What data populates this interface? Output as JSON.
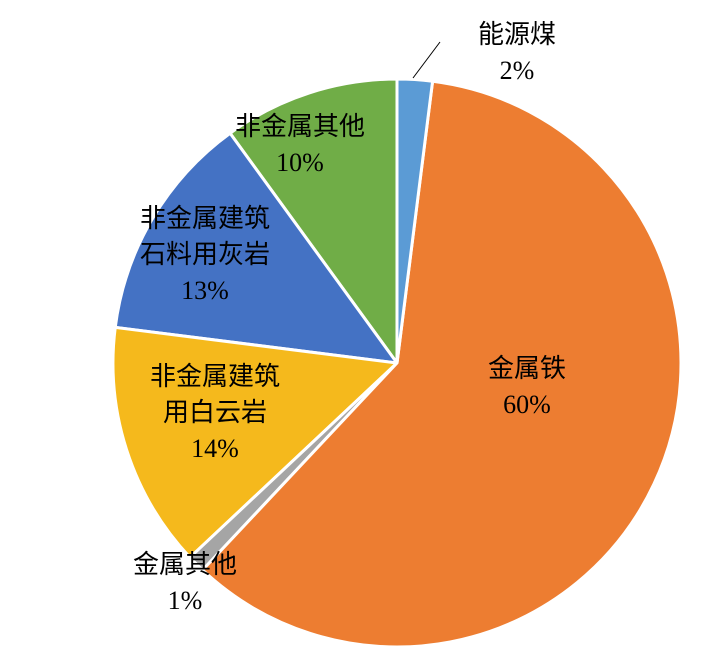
{
  "chart_data": {
    "type": "pie",
    "categories": [
      "能源煤",
      "金属铁",
      "金属其他",
      "非金属建筑用白云岩",
      "非金属建筑石料用灰岩",
      "非金属其他"
    ],
    "values": [
      2,
      60,
      1,
      14,
      13,
      10
    ],
    "value_labels": [
      "2%",
      "60%",
      "1%",
      "14%",
      "13%",
      "10%"
    ],
    "colors": [
      "#5b9bd5",
      "#ed7d31",
      "#a5a5a5",
      "#f5b91c",
      "#4472c4",
      "#70ad47"
    ]
  }
}
